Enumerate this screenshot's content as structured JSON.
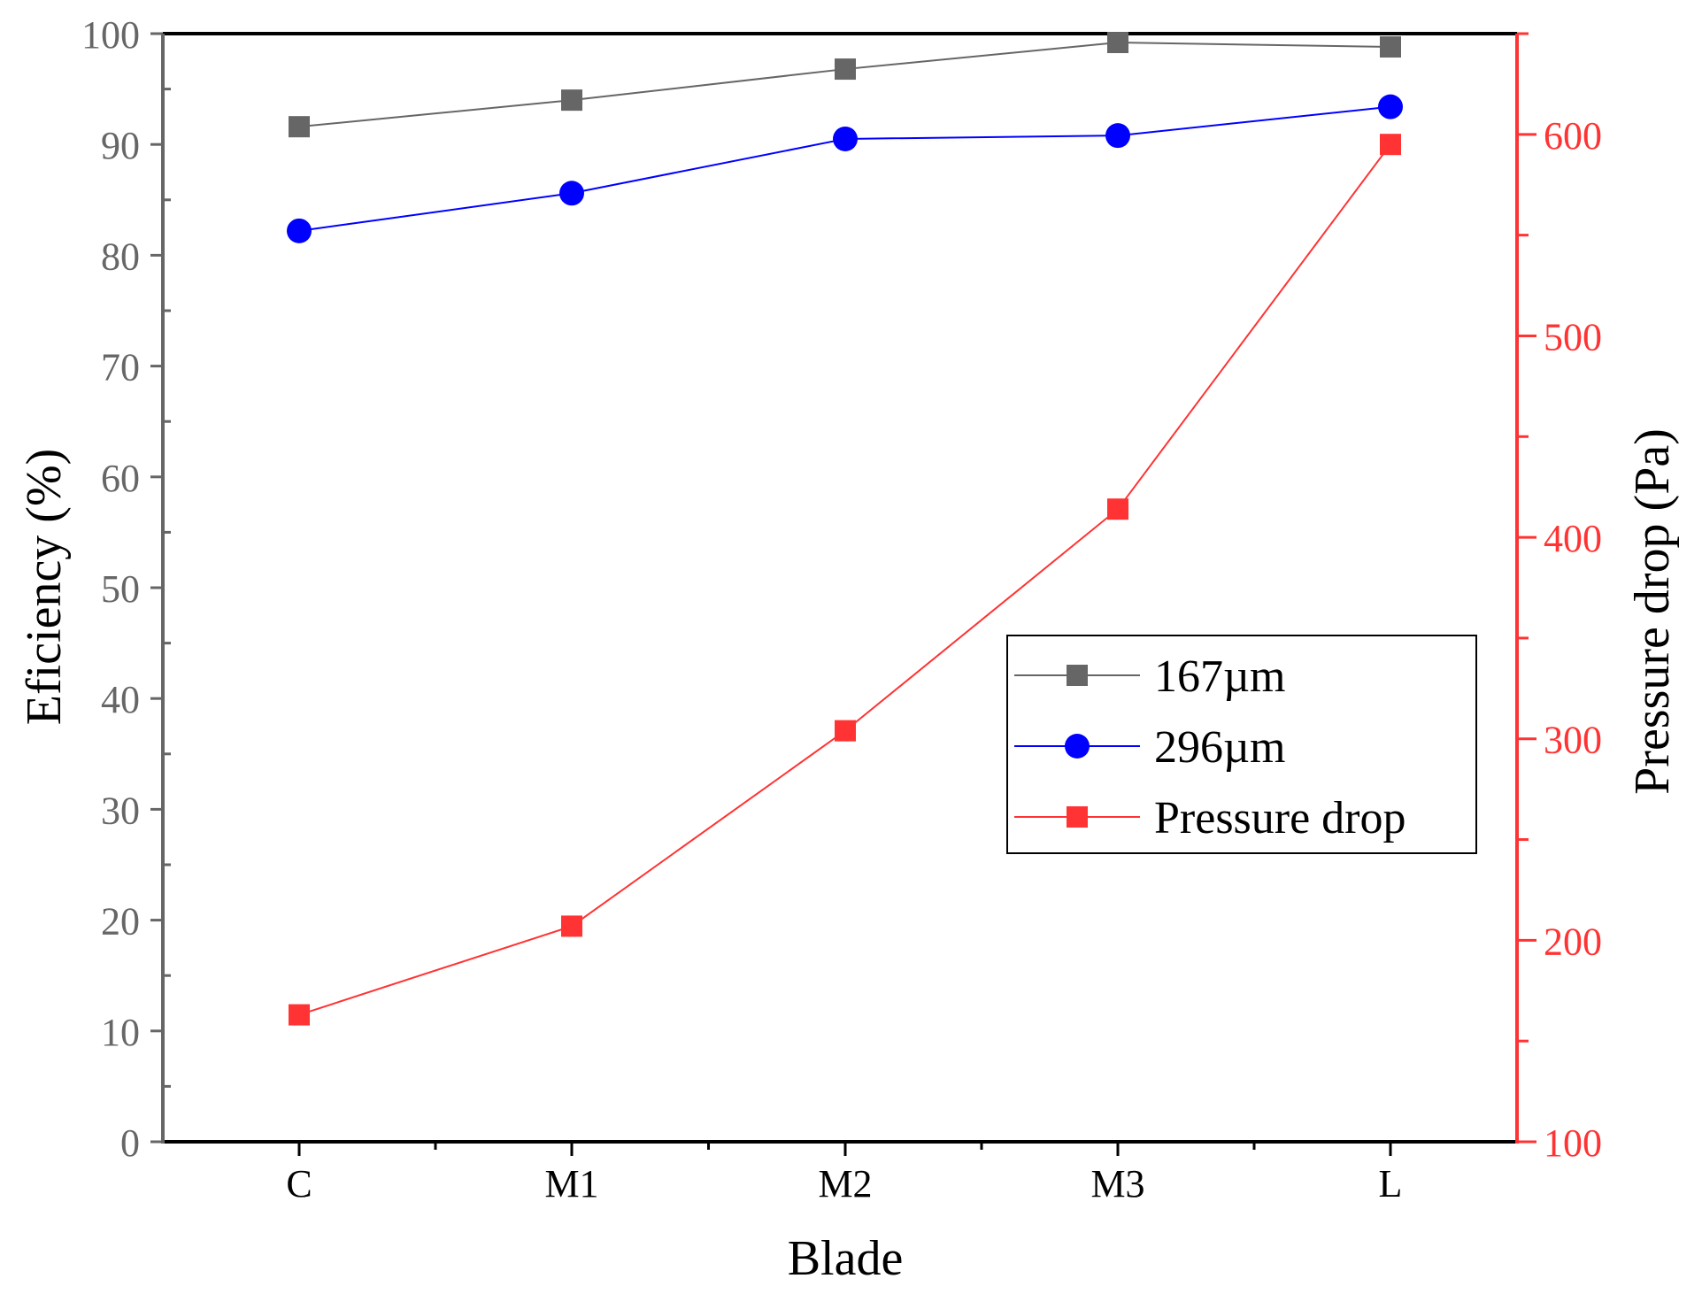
{
  "chart_data": {
    "type": "line",
    "title": "",
    "xlabel": "Blade",
    "ylabel_left": "Eficiency (%)",
    "ylabel_right": "Pressure drop (Pa)",
    "categories": [
      "C",
      "M1",
      "M2",
      "M3",
      "L"
    ],
    "ylim_left": [
      0,
      100
    ],
    "ylim_right": [
      100,
      650
    ],
    "yticks_left": [
      "0",
      "10",
      "20",
      "30",
      "40",
      "50",
      "60",
      "70",
      "80",
      "90",
      "100"
    ],
    "yticks_right": [
      "100",
      "200",
      "300",
      "400",
      "500",
      "600"
    ],
    "grid": false,
    "legend_position": "center-right",
    "series": [
      {
        "name": "167µm",
        "axis": "left",
        "marker": "square",
        "color": "#666666",
        "values": [
          91.6,
          94.0,
          96.8,
          99.2,
          98.8
        ]
      },
      {
        "name": "296µm",
        "axis": "left",
        "marker": "circle",
        "color": "#0000ff",
        "values": [
          82.2,
          85.6,
          90.5,
          90.8,
          93.4
        ]
      },
      {
        "name": "Pressure drop",
        "axis": "right",
        "marker": "square",
        "color": "#ff3333",
        "values": [
          163,
          207,
          304,
          414,
          595
        ]
      }
    ],
    "colors": {
      "left_axis": "#666666",
      "right_axis": "#ff3333",
      "frame": "#000000"
    }
  }
}
